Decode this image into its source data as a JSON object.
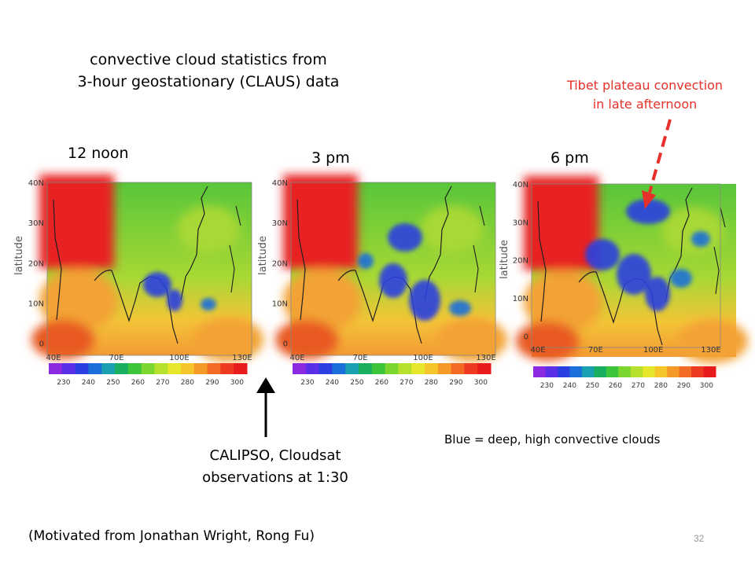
{
  "slide": {
    "title_line1": "convective cloud statistics from",
    "title_line2": "3-hour geostationary (CLAUS) data",
    "annotation_line1": "Tibet plateau convection",
    "annotation_line2": "in late afternoon",
    "blue_note": "Blue = deep, high convective clouds",
    "calipso_line1": "CALIPSO, Cloudsat",
    "calipso_line2": "observations at 1:30",
    "credit": "(Motivated from Jonathan Wright, Rong Fu)",
    "page_number": "32"
  },
  "maps": [
    {
      "label": "12 noon"
    },
    {
      "label": "3 pm"
    },
    {
      "label": "6 pm"
    }
  ],
  "axes": {
    "ylabel": "latitude",
    "lat_ticks": [
      "40N",
      "30N",
      "20N",
      "10N",
      "0"
    ],
    "lon_ticks": [
      "40E",
      "70E",
      "100E",
      "130E"
    ]
  },
  "colorbar": {
    "ticks": [
      "230",
      "240",
      "250",
      "260",
      "270",
      "280",
      "290",
      "300"
    ],
    "colors": [
      "#8a2be2",
      "#5b2ee8",
      "#2b3fe0",
      "#1b6fd8",
      "#1aa0b0",
      "#18b060",
      "#3cc43a",
      "#7bd630",
      "#b6e02e",
      "#e6e62a",
      "#f5c52a",
      "#f59a28",
      "#f26a24",
      "#ee3a20",
      "#e81c1c"
    ]
  },
  "colors": {
    "accent_red": "#e8302a",
    "hot": "#e82020",
    "warm": "#f3a334",
    "mid": "#3cc43a",
    "cold": "#2b3fe0"
  }
}
